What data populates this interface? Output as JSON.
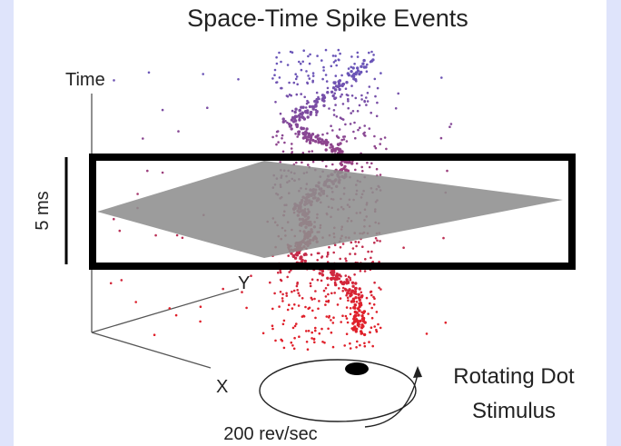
{
  "figure": {
    "title": "Space-Time Spike Events",
    "axes": {
      "time_label": "Time",
      "y_label": "Y",
      "x_label": "X"
    },
    "scale_bar_label": "5 ms",
    "stimulus": {
      "label_line1": "Rotating Dot",
      "label_line2": "Stimulus",
      "speed_label": "200 rev/sec"
    },
    "colors": {
      "early_spikes": "#6a55b8",
      "late_spikes": "#e0202a",
      "time_window_plane": "#8e8e8e",
      "window_frame": "#000000",
      "dot": "#000000"
    }
  }
}
